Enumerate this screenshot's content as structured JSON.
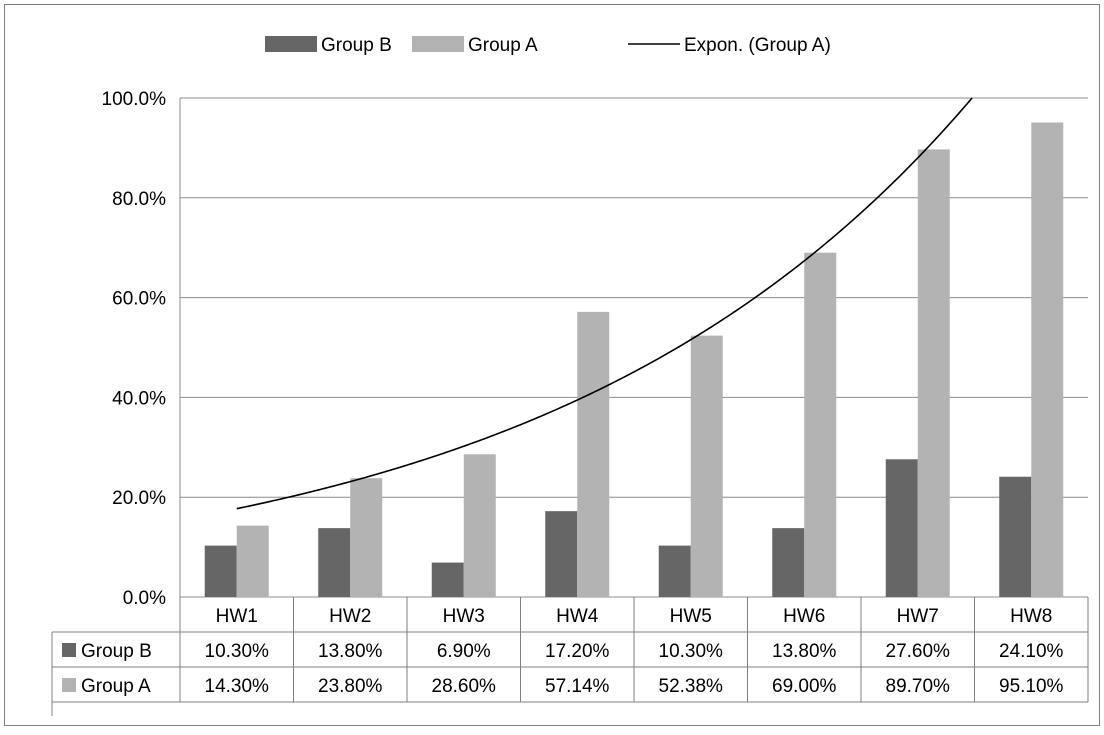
{
  "colors": {
    "group_b": "#666666",
    "group_a": "#b3b3b3",
    "trendline": "#000000",
    "grid": "#8c8c8c",
    "border": "#7f7f7f"
  },
  "legend": {
    "position": "top",
    "items": [
      {
        "label": "Group B",
        "kind": "bar",
        "color_key": "group_b"
      },
      {
        "label": "Group A",
        "kind": "bar",
        "color_key": "group_a"
      },
      {
        "label": "Expon. (Group A)",
        "kind": "line",
        "color_key": "trendline"
      }
    ]
  },
  "chart_data": {
    "type": "bar",
    "categories": [
      "HW1",
      "HW2",
      "HW3",
      "HW4",
      "HW5",
      "HW6",
      "HW7",
      "HW8"
    ],
    "series": [
      {
        "name": "Group B",
        "values": [
          10.3,
          13.8,
          6.9,
          17.2,
          10.3,
          13.8,
          27.6,
          24.1
        ],
        "labels": [
          "10.30%",
          "13.80%",
          "6.90%",
          "17.20%",
          "10.30%",
          "13.80%",
          "27.60%",
          "24.10%"
        ]
      },
      {
        "name": "Group A",
        "values": [
          14.3,
          23.8,
          28.6,
          57.14,
          52.38,
          69.0,
          89.7,
          95.1
        ],
        "labels": [
          "14.30%",
          "23.80%",
          "28.60%",
          "57.14%",
          "52.38%",
          "69.00%",
          "89.70%",
          "95.10%"
        ]
      }
    ],
    "trendline": {
      "name": "Expon. (Group A)",
      "type": "exponential",
      "of_series": "Group A"
    },
    "ylim": [
      0,
      100
    ],
    "yticks": [
      0,
      20,
      40,
      60,
      80,
      100
    ],
    "ytick_labels": [
      "0.0%",
      "20.0%",
      "40.0%",
      "60.0%",
      "80.0%",
      "100.0%"
    ],
    "grid": true,
    "data_table": true,
    "title": "",
    "xlabel": "",
    "ylabel": ""
  }
}
